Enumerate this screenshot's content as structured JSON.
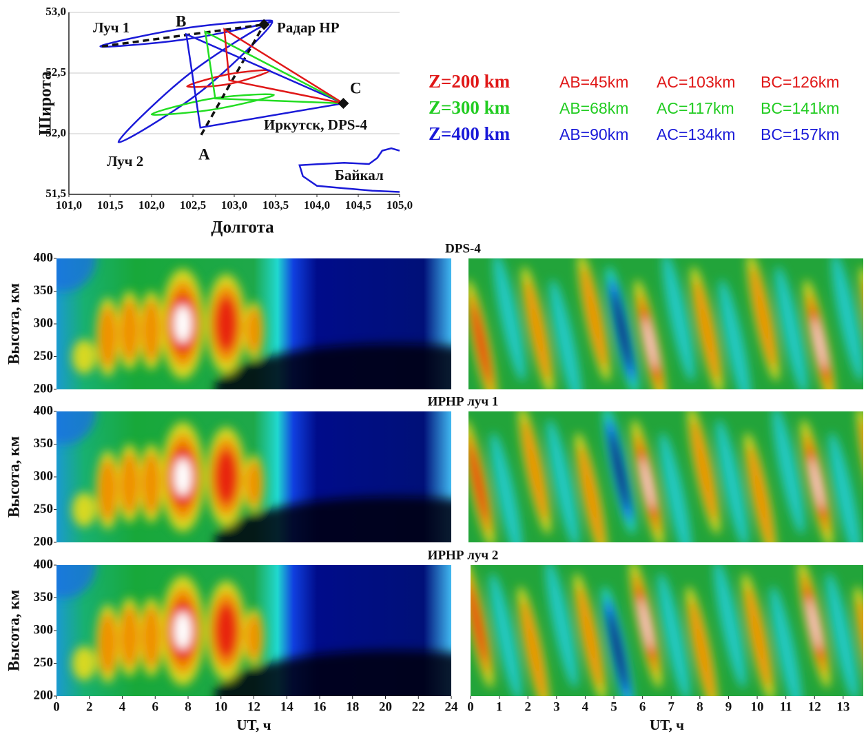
{
  "chart_data": [
    {
      "type": "line",
      "xlabel": "Долгота",
      "ylabel": "Широта",
      "xlim": [
        101,
        105
      ],
      "ylim": [
        51.5,
        53
      ],
      "xticks": [
        {
          "value": 101,
          "label": "101,0"
        },
        {
          "value": 101.5,
          "label": "101,5"
        },
        {
          "value": 102,
          "label": "102,0"
        },
        {
          "value": 102.5,
          "label": "102,5"
        },
        {
          "value": 103,
          "label": "103,0"
        },
        {
          "value": 103.5,
          "label": "103,5"
        },
        {
          "value": 104,
          "label": "104,0"
        },
        {
          "value": 104.5,
          "label": "104,5"
        },
        {
          "value": 105,
          "label": "105,0"
        }
      ],
      "yticks": [
        {
          "value": 51.5,
          "label": "51,5"
        },
        {
          "value": 52,
          "label": "52,0"
        },
        {
          "value": 52.5,
          "label": "52,5"
        },
        {
          "value": 53,
          "label": "53,0"
        }
      ],
      "grid": true,
      "series": [
        {
          "color": "#1a1ad8",
          "smooth": true,
          "x": [
            101.38,
            102.43,
            103.46,
            102.41
          ],
          "y": [
            52.72,
            52.78,
            52.93,
            52.87
          ]
        },
        {
          "color": "#1a1ad8",
          "smooth": true,
          "x": [
            101.6,
            102.6,
            103.46,
            102.45
          ],
          "y": [
            51.93,
            52.35,
            52.92,
            52.49
          ]
        },
        {
          "color": "#22dd22",
          "smooth": true,
          "x": [
            102.0,
            102.75,
            103.48,
            102.73
          ],
          "y": [
            52.16,
            52.2,
            52.32,
            52.29
          ]
        },
        {
          "color": "#e01818",
          "smooth": true,
          "x": [
            102.43,
            102.94,
            103.43,
            102.93
          ],
          "y": [
            52.39,
            52.41,
            52.52,
            52.49
          ]
        },
        {
          "color": "#111111",
          "dash": true,
          "x": [
            101.4,
            103.36
          ],
          "y": [
            52.72,
            52.9
          ]
        },
        {
          "color": "#111111",
          "dash": true,
          "x": [
            102.6,
            103.36
          ],
          "y": [
            51.99,
            52.9
          ]
        },
        {
          "color": "#1a1ad8",
          "closed": true,
          "x": [
            102.42,
            102.59,
            104.32
          ],
          "y": [
            52.82,
            52.05,
            52.25
          ]
        },
        {
          "color": "#22dd22",
          "closed": true,
          "x": [
            102.65,
            102.77,
            104.32
          ],
          "y": [
            52.84,
            52.29,
            52.25
          ]
        },
        {
          "color": "#e01818",
          "closed": true,
          "x": [
            102.88,
            102.94,
            104.32
          ],
          "y": [
            52.86,
            52.44,
            52.25
          ]
        },
        {
          "color": "#1a1ad8",
          "x": [
            105.0,
            104.9,
            104.79,
            104.73,
            104.63,
            104.33,
            104.04,
            103.79,
            103.83,
            104.0,
            104.33,
            104.67,
            105.0
          ],
          "y": [
            51.86,
            51.88,
            51.86,
            51.8,
            51.75,
            51.76,
            51.75,
            51.74,
            51.65,
            51.57,
            51.55,
            51.53,
            51.52
          ]
        }
      ],
      "markers": {
        "color": "#111111",
        "x": [
          103.36,
          104.32
        ],
        "y": [
          52.9,
          52.25
        ]
      },
      "annotations": [
        "Луч 1",
        "B",
        "Радар НР",
        "C",
        "Иркутск, DPS-4",
        "A",
        "Луч 2",
        "Байкал"
      ]
    },
    {
      "type": "heatmap",
      "title": "DPS-4",
      "ylabel": "Высота, км",
      "ylim": [
        200,
        400
      ],
      "yticks": [
        200,
        250,
        300,
        350,
        400
      ]
    },
    {
      "type": "heatmap"
    },
    {
      "type": "heatmap",
      "title": "ИРНР луч 1",
      "ylabel": "Высота, км",
      "ylim": [
        200,
        400
      ],
      "yticks": [
        200,
        250,
        300,
        350,
        400
      ]
    },
    {
      "type": "heatmap"
    },
    {
      "type": "heatmap",
      "title": "ИРНР луч 2",
      "ylabel": "Высота, км",
      "ylim": [
        200,
        400
      ],
      "yticks": [
        200,
        250,
        300,
        350,
        400
      ],
      "xlabel": "UT, ч",
      "xlim": [
        0,
        24
      ],
      "xticks": [
        0,
        2,
        4,
        6,
        8,
        10,
        12,
        14,
        16,
        18,
        20,
        22,
        24
      ]
    },
    {
      "type": "heatmap",
      "xlabel": "UT, ч",
      "xlim": [
        0,
        13.7
      ],
      "xticks": [
        0,
        1,
        2,
        3,
        4,
        5,
        6,
        7,
        8,
        9,
        10,
        11,
        12,
        13
      ]
    }
  ],
  "distances": [
    {
      "label": "Z=200 km",
      "color": "#e01818",
      "items": [
        "AB=45km",
        "AC=103km",
        "BC=126km"
      ]
    },
    {
      "label": "Z=300 km",
      "color": "#22cc22",
      "items": [
        "AB=68km",
        "AC=117km",
        "BC=141km"
      ]
    },
    {
      "label": "Z=400 km",
      "color": "#1a1ad8",
      "items": [
        "AB=90km",
        "AC=134km",
        "BC=157km"
      ]
    }
  ]
}
